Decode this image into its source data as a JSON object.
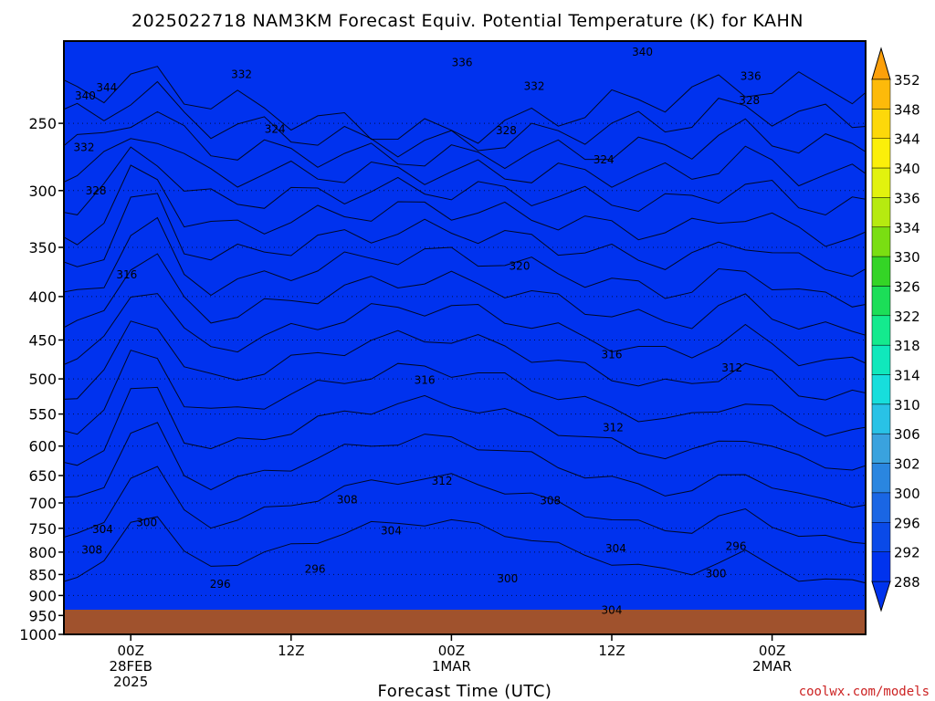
{
  "chart_data": {
    "type": "heatmap",
    "title": "2025022718 NAM3KM Forecast Equiv. Potential Temperature (K) for KAHN",
    "xlabel": "Forecast Time (UTC)",
    "ylabel": "",
    "y_scale": "log",
    "y_reversed": true,
    "y_range": [
      200,
      1000
    ],
    "y_ticks": [
      250,
      300,
      350,
      400,
      450,
      500,
      550,
      600,
      650,
      700,
      750,
      800,
      850,
      900,
      950,
      1000
    ],
    "x_range_hours": [
      -5,
      55
    ],
    "x_ticks": [
      {
        "hour": 0,
        "lines": [
          "00Z",
          "28FEB",
          "2025"
        ]
      },
      {
        "hour": 12,
        "lines": [
          "12Z"
        ]
      },
      {
        "hour": 24,
        "lines": [
          "00Z",
          "1MAR"
        ]
      },
      {
        "hour": 36,
        "lines": [
          "12Z"
        ]
      },
      {
        "hour": 48,
        "lines": [
          "00Z",
          "2MAR"
        ]
      }
    ],
    "colorbar": {
      "levels": [
        288,
        292,
        296,
        300,
        302,
        306,
        310,
        314,
        318,
        322,
        326,
        330,
        334,
        336,
        340,
        344,
        348,
        352
      ],
      "colors": [
        "#0033ee",
        "#0a4ae8",
        "#1a66e4",
        "#2a86e0",
        "#3aa2de",
        "#29c2e6",
        "#17dedc",
        "#10e8bc",
        "#14ea8e",
        "#1cde58",
        "#34d426",
        "#7ade12",
        "#b6ea10",
        "#e2f20e",
        "#fbef0a",
        "#fdd80a",
        "#fdba0a",
        "#fda00a"
      ],
      "extend": "both"
    },
    "ground_color": "#a0522d",
    "contour_labels": [
      {
        "value": "336",
        "hour": 24.8,
        "p": 212
      },
      {
        "value": "340",
        "hour": 38.3,
        "p": 206
      },
      {
        "value": "336",
        "hour": 46.4,
        "p": 220
      },
      {
        "value": "332",
        "hour": 8.3,
        "p": 219
      },
      {
        "value": "332",
        "hour": 30.2,
        "p": 226
      },
      {
        "value": "344",
        "hour": -1.8,
        "p": 227
      },
      {
        "value": "340",
        "hour": -3.4,
        "p": 232
      },
      {
        "value": "328",
        "hour": 46.3,
        "p": 235
      },
      {
        "value": "328",
        "hour": 28.1,
        "p": 255
      },
      {
        "value": "324",
        "hour": 10.8,
        "p": 254
      },
      {
        "value": "332",
        "hour": -3.5,
        "p": 267
      },
      {
        "value": "324",
        "hour": 35.4,
        "p": 276
      },
      {
        "value": "328",
        "hour": -2.6,
        "p": 300
      },
      {
        "value": "320",
        "hour": 29.1,
        "p": 368
      },
      {
        "value": "316",
        "hour": -0.3,
        "p": 377
      },
      {
        "value": "316",
        "hour": 36.0,
        "p": 468
      },
      {
        "value": "312",
        "hour": 45.0,
        "p": 485
      },
      {
        "value": "316",
        "hour": 22.0,
        "p": 502
      },
      {
        "value": "312",
        "hour": 36.1,
        "p": 571
      },
      {
        "value": "312",
        "hour": 23.3,
        "p": 660
      },
      {
        "value": "308",
        "hour": 16.2,
        "p": 694
      },
      {
        "value": "308",
        "hour": 31.4,
        "p": 696
      },
      {
        "value": "300",
        "hour": 1.2,
        "p": 738
      },
      {
        "value": "304",
        "hour": -2.1,
        "p": 752
      },
      {
        "value": "304",
        "hour": 19.5,
        "p": 755
      },
      {
        "value": "308",
        "hour": -2.9,
        "p": 795
      },
      {
        "value": "304",
        "hour": 36.3,
        "p": 792
      },
      {
        "value": "296",
        "hour": 45.3,
        "p": 787
      },
      {
        "value": "296",
        "hour": 13.8,
        "p": 838
      },
      {
        "value": "300",
        "hour": 43.8,
        "p": 848
      },
      {
        "value": "296",
        "hour": 6.7,
        "p": 873
      },
      {
        "value": "300",
        "hour": 28.2,
        "p": 860
      },
      {
        "value": "304",
        "hour": 36.0,
        "p": 937
      }
    ]
  },
  "watermark": "coolwx.com/models"
}
